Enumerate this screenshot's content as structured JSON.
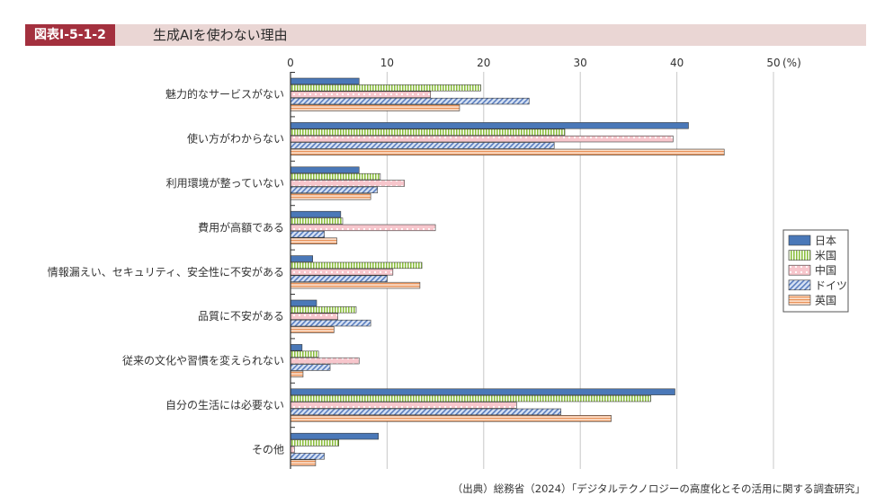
{
  "header": {
    "label": "図表Ⅰ-5-1-2",
    "title": "生成AIを使わない理由"
  },
  "source": "（出典）総務省（2024）「デジタルテクノロジーの高度化とその活用に関する調査研究」",
  "chart_data": {
    "type": "bar",
    "orientation": "horizontal",
    "title": "生成AIを使わない理由",
    "unit_label": "(%)",
    "xlim": [
      0,
      50
    ],
    "ticks": [
      0,
      10,
      20,
      30,
      40,
      50
    ],
    "tick_labels": [
      "0",
      "10",
      "20",
      "30",
      "40",
      "50"
    ],
    "grid": true,
    "legend_position": "right",
    "categories": [
      "魅力的なサービスがない",
      "使い方がわからない",
      "利用環境が整っていない",
      "費用が高額である",
      "情報漏えい、セキュリティ、安全性に不安がある",
      "品質に不安がある",
      "従来の文化や習慣を変えられない",
      "自分の生活には必要ない",
      "その他"
    ],
    "series": [
      {
        "name": "日本",
        "color": "#4a78b8",
        "pattern": "solid",
        "values": [
          7.1,
          41.2,
          7.1,
          5.2,
          2.3,
          2.7,
          1.2,
          39.8,
          9.1
        ]
      },
      {
        "name": "米国",
        "color": "#8cbf3f",
        "pattern": "vertical-stripes",
        "values": [
          19.7,
          28.4,
          9.3,
          5.4,
          13.6,
          6.8,
          2.9,
          37.3,
          5.0
        ]
      },
      {
        "name": "中国",
        "color": "#e46a78",
        "pattern": "dots",
        "values": [
          14.5,
          39.6,
          11.8,
          15.0,
          10.6,
          4.9,
          7.1,
          23.4,
          0.4
        ]
      },
      {
        "name": "ドイツ",
        "color": "#5a7ec0",
        "pattern": "diagonal",
        "values": [
          24.7,
          27.3,
          9.0,
          3.5,
          10.0,
          8.3,
          4.1,
          28.0,
          3.5
        ]
      },
      {
        "name": "英国",
        "color": "#e9935a",
        "pattern": "horizontal-stripes",
        "values": [
          17.5,
          44.9,
          8.3,
          4.8,
          13.4,
          4.5,
          1.3,
          33.2,
          2.6
        ]
      }
    ]
  }
}
